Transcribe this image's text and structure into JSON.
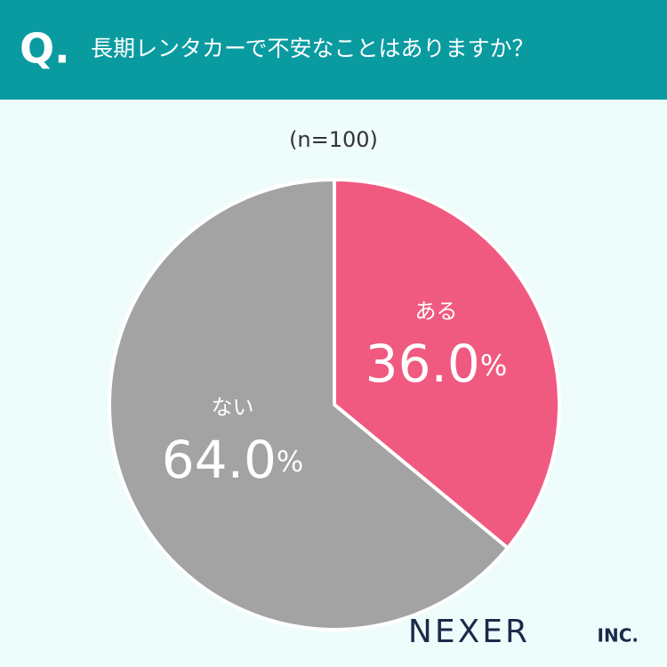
{
  "header": {
    "mark": "Q.",
    "question": "長期レンタカーで不安なことはありますか？"
  },
  "chart_data": {
    "type": "pie",
    "subtitle": "(n=100)",
    "categories": [
      "ある",
      "ない"
    ],
    "values": [
      36.0,
      64.0
    ],
    "value_labels": [
      "36.0%",
      "64.0%"
    ],
    "colors": [
      "#f05a80",
      "#a3a3a3"
    ]
  },
  "footer": {
    "logo": "NEXER",
    "logo_suffix": "INC."
  }
}
